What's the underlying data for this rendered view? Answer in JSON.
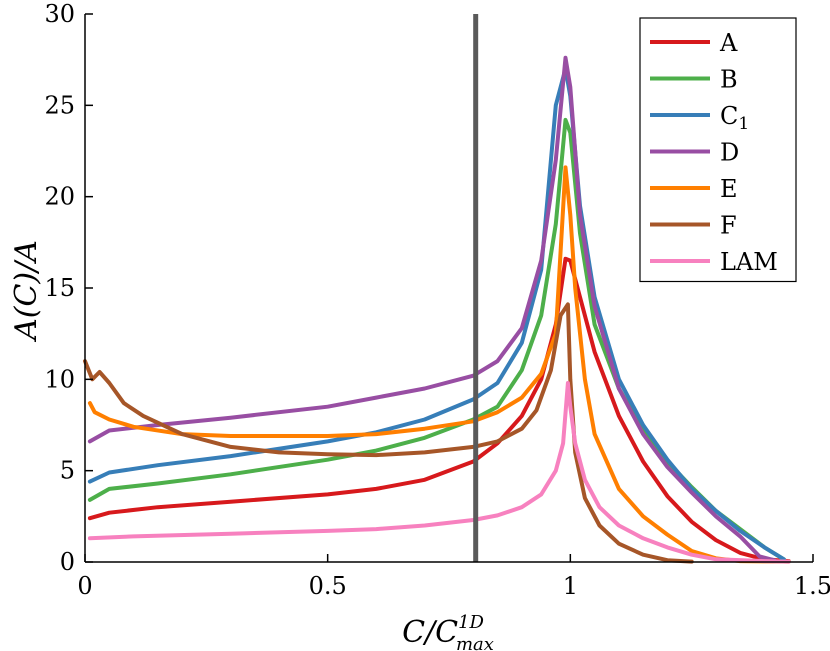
{
  "chart_data": {
    "type": "line",
    "title": "",
    "xlabel": "C/C",
    "xlabel_sup": "1D",
    "xlabel_sub": "max",
    "ylabel": "A(C)/A",
    "xlim": [
      0,
      1.5
    ],
    "ylim": [
      0,
      30
    ],
    "xticks": [
      0,
      0.5,
      1,
      1.5
    ],
    "xtick_labels": [
      "0",
      "0.5",
      "1",
      "1.5"
    ],
    "yticks": [
      0,
      5,
      10,
      15,
      20,
      25,
      30
    ],
    "ytick_labels": [
      "0",
      "5",
      "10",
      "15",
      "20",
      "25",
      "30"
    ],
    "grid": false,
    "legend_position": "top-right",
    "vline": {
      "x": 0.805,
      "color": "#5a5a5a"
    },
    "series": [
      {
        "name": "A",
        "color": "#d7191c",
        "points": [
          [
            0.01,
            2.4
          ],
          [
            0.05,
            2.7
          ],
          [
            0.15,
            3.0
          ],
          [
            0.3,
            3.3
          ],
          [
            0.5,
            3.7
          ],
          [
            0.6,
            4.0
          ],
          [
            0.7,
            4.5
          ],
          [
            0.8,
            5.5
          ],
          [
            0.85,
            6.5
          ],
          [
            0.9,
            8.0
          ],
          [
            0.94,
            10.0
          ],
          [
            0.97,
            13.0
          ],
          [
            0.99,
            16.6
          ],
          [
            1.0,
            16.5
          ],
          [
            1.02,
            14.5
          ],
          [
            1.05,
            11.5
          ],
          [
            1.1,
            8.0
          ],
          [
            1.15,
            5.5
          ],
          [
            1.2,
            3.6
          ],
          [
            1.25,
            2.2
          ],
          [
            1.3,
            1.2
          ],
          [
            1.35,
            0.5
          ],
          [
            1.4,
            0.15
          ],
          [
            1.45,
            0.05
          ]
        ]
      },
      {
        "name": "B",
        "color": "#4daf4a",
        "points": [
          [
            0.01,
            3.4
          ],
          [
            0.05,
            4.0
          ],
          [
            0.15,
            4.3
          ],
          [
            0.3,
            4.8
          ],
          [
            0.5,
            5.6
          ],
          [
            0.6,
            6.1
          ],
          [
            0.7,
            6.8
          ],
          [
            0.8,
            7.8
          ],
          [
            0.85,
            8.5
          ],
          [
            0.9,
            10.5
          ],
          [
            0.94,
            13.5
          ],
          [
            0.97,
            18.5
          ],
          [
            0.99,
            24.2
          ],
          [
            1.0,
            23.5
          ],
          [
            1.02,
            18.0
          ],
          [
            1.05,
            13.0
          ],
          [
            1.1,
            9.5
          ],
          [
            1.15,
            7.2
          ],
          [
            1.2,
            5.5
          ],
          [
            1.25,
            4.1
          ],
          [
            1.3,
            2.8
          ],
          [
            1.35,
            1.8
          ],
          [
            1.4,
            0.8
          ],
          [
            1.44,
            0.15
          ]
        ]
      },
      {
        "name": "C",
        "name_sub": "1",
        "color": "#377eb8",
        "points": [
          [
            0.01,
            4.4
          ],
          [
            0.05,
            4.9
          ],
          [
            0.15,
            5.3
          ],
          [
            0.3,
            5.8
          ],
          [
            0.5,
            6.6
          ],
          [
            0.6,
            7.1
          ],
          [
            0.7,
            7.8
          ],
          [
            0.8,
            8.9
          ],
          [
            0.85,
            9.8
          ],
          [
            0.9,
            12.0
          ],
          [
            0.94,
            16.0
          ],
          [
            0.97,
            25.0
          ],
          [
            0.99,
            27.0
          ],
          [
            1.0,
            25.5
          ],
          [
            1.02,
            19.5
          ],
          [
            1.05,
            14.5
          ],
          [
            1.1,
            10.0
          ],
          [
            1.15,
            7.5
          ],
          [
            1.2,
            5.6
          ],
          [
            1.25,
            4.0
          ],
          [
            1.3,
            2.8
          ],
          [
            1.35,
            1.7
          ],
          [
            1.4,
            0.8
          ],
          [
            1.44,
            0.15
          ]
        ]
      },
      {
        "name": "D",
        "color": "#984ea3",
        "points": [
          [
            0.01,
            6.6
          ],
          [
            0.05,
            7.2
          ],
          [
            0.15,
            7.5
          ],
          [
            0.3,
            7.9
          ],
          [
            0.5,
            8.5
          ],
          [
            0.6,
            9.0
          ],
          [
            0.7,
            9.5
          ],
          [
            0.8,
            10.2
          ],
          [
            0.85,
            11.0
          ],
          [
            0.9,
            12.8
          ],
          [
            0.94,
            16.5
          ],
          [
            0.97,
            22.0
          ],
          [
            0.99,
            27.6
          ],
          [
            1.0,
            26.0
          ],
          [
            1.02,
            19.0
          ],
          [
            1.05,
            14.0
          ],
          [
            1.1,
            9.5
          ],
          [
            1.15,
            7.0
          ],
          [
            1.2,
            5.2
          ],
          [
            1.25,
            3.8
          ],
          [
            1.3,
            2.5
          ],
          [
            1.35,
            1.4
          ],
          [
            1.39,
            0.3
          ],
          [
            1.42,
            0.1
          ]
        ]
      },
      {
        "name": "E",
        "color": "#ff7f00",
        "points": [
          [
            0.01,
            8.7
          ],
          [
            0.02,
            8.2
          ],
          [
            0.05,
            7.8
          ],
          [
            0.1,
            7.4
          ],
          [
            0.2,
            7.0
          ],
          [
            0.3,
            6.9
          ],
          [
            0.5,
            6.9
          ],
          [
            0.6,
            7.0
          ],
          [
            0.7,
            7.3
          ],
          [
            0.8,
            7.7
          ],
          [
            0.85,
            8.2
          ],
          [
            0.9,
            9.0
          ],
          [
            0.94,
            10.3
          ],
          [
            0.97,
            12.5
          ],
          [
            0.99,
            21.6
          ],
          [
            1.0,
            19.0
          ],
          [
            1.01,
            15.0
          ],
          [
            1.03,
            10.0
          ],
          [
            1.05,
            7.0
          ],
          [
            1.1,
            4.0
          ],
          [
            1.15,
            2.5
          ],
          [
            1.2,
            1.5
          ],
          [
            1.25,
            0.6
          ],
          [
            1.3,
            0.2
          ],
          [
            1.35,
            0.05
          ],
          [
            1.45,
            0.02
          ]
        ]
      },
      {
        "name": "F",
        "color": "#a65628",
        "points": [
          [
            0.0,
            11.0
          ],
          [
            0.015,
            10.0
          ],
          [
            0.03,
            10.4
          ],
          [
            0.05,
            9.8
          ],
          [
            0.08,
            8.7
          ],
          [
            0.12,
            8.0
          ],
          [
            0.2,
            7.0
          ],
          [
            0.3,
            6.3
          ],
          [
            0.4,
            6.0
          ],
          [
            0.5,
            5.9
          ],
          [
            0.6,
            5.85
          ],
          [
            0.7,
            6.0
          ],
          [
            0.8,
            6.3
          ],
          [
            0.85,
            6.6
          ],
          [
            0.9,
            7.3
          ],
          [
            0.93,
            8.3
          ],
          [
            0.96,
            10.5
          ],
          [
            0.98,
            13.5
          ],
          [
            0.995,
            14.1
          ],
          [
            1.0,
            10.0
          ],
          [
            1.01,
            6.0
          ],
          [
            1.03,
            3.5
          ],
          [
            1.06,
            2.0
          ],
          [
            1.1,
            1.0
          ],
          [
            1.15,
            0.4
          ],
          [
            1.2,
            0.1
          ],
          [
            1.25,
            0.02
          ]
        ]
      },
      {
        "name": "LAM",
        "color": "#f781bf",
        "points": [
          [
            0.01,
            1.3
          ],
          [
            0.1,
            1.4
          ],
          [
            0.3,
            1.55
          ],
          [
            0.5,
            1.7
          ],
          [
            0.6,
            1.8
          ],
          [
            0.7,
            2.0
          ],
          [
            0.8,
            2.3
          ],
          [
            0.85,
            2.55
          ],
          [
            0.9,
            3.0
          ],
          [
            0.94,
            3.7
          ],
          [
            0.97,
            5.0
          ],
          [
            0.985,
            6.5
          ],
          [
            0.995,
            9.8
          ],
          [
            1.0,
            8.5
          ],
          [
            1.01,
            6.5
          ],
          [
            1.03,
            4.5
          ],
          [
            1.06,
            3.0
          ],
          [
            1.1,
            2.0
          ],
          [
            1.15,
            1.3
          ],
          [
            1.2,
            0.8
          ],
          [
            1.25,
            0.4
          ],
          [
            1.3,
            0.15
          ],
          [
            1.4,
            0.05
          ],
          [
            1.45,
            0.02
          ]
        ]
      }
    ]
  }
}
